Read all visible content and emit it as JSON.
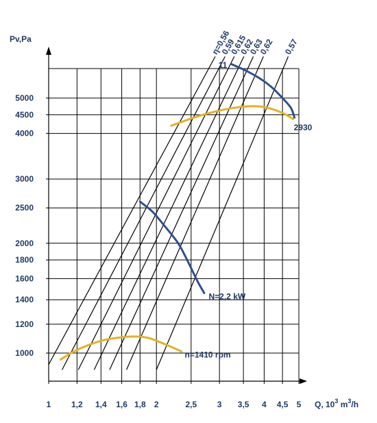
{
  "chart_data": {
    "type": "line",
    "xscale": "log",
    "yscale": "log",
    "xlabel": "Q, 10",
    "xlabel_exp": "3",
    "xlabel_unit_pre": " m",
    "xlabel_unit_exp": "3",
    "xlabel_unit_post": "/h",
    "ylabel": "Pv,Pa",
    "xlim": [
      1,
      5
    ],
    "ylim": [
      880,
      6500
    ],
    "x_ticks": [
      {
        "v": 1,
        "label": "1"
      },
      {
        "v": 1.2,
        "label": "1,2"
      },
      {
        "v": 1.4,
        "label": "1,4"
      },
      {
        "v": 1.6,
        "label": "1,6"
      },
      {
        "v": 1.8,
        "label": "1,8"
      },
      {
        "v": 2,
        "label": "2"
      },
      {
        "v": 2.5,
        "label": "2,5"
      },
      {
        "v": 3,
        "label": "3"
      },
      {
        "v": 3.5,
        "label": "3,5"
      },
      {
        "v": 4,
        "label": "4"
      },
      {
        "v": 4.5,
        "label": "4,5"
      },
      {
        "v": 5,
        "label": "5"
      }
    ],
    "y_ticks": [
      {
        "v": 1000,
        "label": "1000"
      },
      {
        "v": 1200,
        "label": "1200"
      },
      {
        "v": 1400,
        "label": "1400"
      },
      {
        "v": 1600,
        "label": "1600"
      },
      {
        "v": 1800,
        "label": "1800"
      },
      {
        "v": 2000,
        "label": "2000"
      },
      {
        "v": 2500,
        "label": "2500"
      },
      {
        "v": 3000,
        "label": "3000"
      },
      {
        "v": 4000,
        "label": "4000"
      },
      {
        "v": 4500,
        "label": "4500"
      },
      {
        "v": 5000,
        "label": "5000"
      }
    ],
    "grid": true,
    "efficiency_lines": [
      {
        "label": "η=0,56",
        "points": [
          [
            1.0,
            930
          ],
          [
            2.92,
            6500
          ]
        ]
      },
      {
        "label": "0,59",
        "points": [
          [
            1.09,
            900
          ],
          [
            3.11,
            6500
          ]
        ]
      },
      {
        "label": "0,615",
        "points": [
          [
            1.21,
            900
          ],
          [
            3.3,
            6500
          ]
        ]
      },
      {
        "label": "0,62",
        "points": [
          [
            1.34,
            900
          ],
          [
            3.51,
            6500
          ]
        ]
      },
      {
        "label": "0,63",
        "points": [
          [
            1.48,
            900
          ],
          [
            3.73,
            6500
          ]
        ]
      },
      {
        "label": "0,62",
        "points": [
          [
            1.65,
            900
          ],
          [
            3.98,
            6500
          ]
        ]
      },
      {
        "label": "0,57",
        "points": [
          [
            2.0,
            900
          ],
          [
            4.67,
            6500
          ]
        ]
      }
    ],
    "series": [
      {
        "name": "n=1410 rpm",
        "color": "#e1b225",
        "points": [
          [
            1.08,
            960
          ],
          [
            1.2,
            1020
          ],
          [
            1.4,
            1080
          ],
          [
            1.6,
            1105
          ],
          [
            1.75,
            1110
          ],
          [
            1.9,
            1100
          ],
          [
            2.1,
            1060
          ],
          [
            2.35,
            1010
          ]
        ]
      },
      {
        "name": "2930",
        "color": "#e1b225",
        "points": [
          [
            2.2,
            4200
          ],
          [
            2.6,
            4450
          ],
          [
            3.0,
            4620
          ],
          [
            3.4,
            4720
          ],
          [
            3.75,
            4750
          ],
          [
            4.1,
            4700
          ],
          [
            4.5,
            4550
          ],
          [
            4.82,
            4380
          ]
        ]
      },
      {
        "name": "N=2,2 kW",
        "color": "#2f4f8a",
        "points": [
          [
            1.8,
            2600
          ],
          [
            1.95,
            2440
          ],
          [
            2.1,
            2240
          ],
          [
            2.3,
            2000
          ],
          [
            2.45,
            1780
          ],
          [
            2.6,
            1580
          ],
          [
            2.72,
            1460
          ]
        ]
      },
      {
        "name": "11",
        "color": "#2f4f8a",
        "points": [
          [
            3.23,
            6200
          ],
          [
            3.55,
            5950
          ],
          [
            3.9,
            5650
          ],
          [
            4.2,
            5350
          ],
          [
            4.5,
            5000
          ],
          [
            4.75,
            4700
          ],
          [
            4.86,
            4420
          ]
        ]
      }
    ],
    "annotations": [
      {
        "text": "n=1410 rpm",
        "x": 2.4,
        "y": 990
      },
      {
        "text": "2930",
        "x": 4.84,
        "y": 4150
      },
      {
        "text": "N=2,2 kW",
        "x": 2.8,
        "y": 1430
      },
      {
        "text": "11",
        "x": 2.98,
        "y": 6150
      }
    ]
  }
}
